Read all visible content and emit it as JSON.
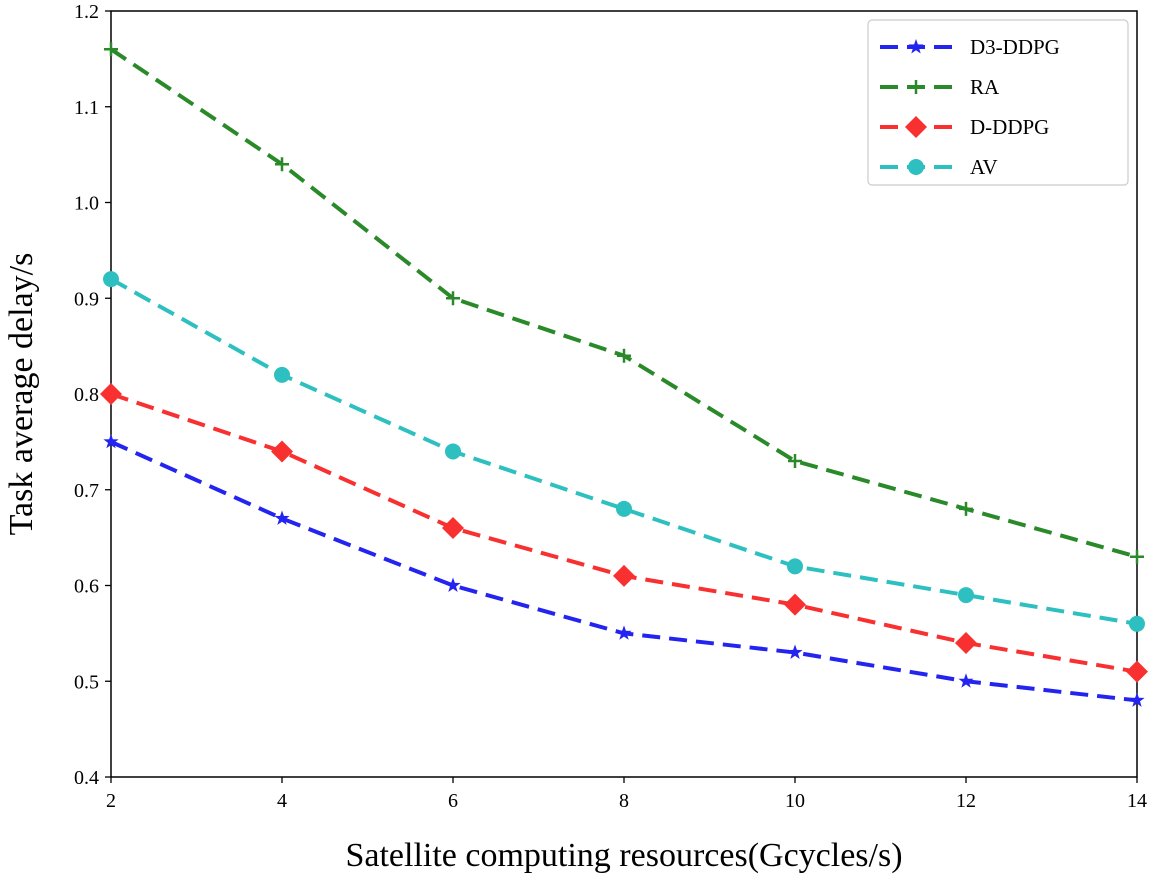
{
  "chart_data": {
    "type": "line",
    "title": "",
    "xlabel": "Satellite computing resources(Gcycles/s)",
    "ylabel": "Task average delay/s",
    "x": [
      2,
      4,
      6,
      8,
      10,
      12,
      14
    ],
    "xlim": [
      2,
      14
    ],
    "ylim": [
      0.4,
      1.2
    ],
    "xticks": [
      "2",
      "4",
      "6",
      "8",
      "10",
      "12",
      "14"
    ],
    "yticks": [
      "0.4",
      "0.5",
      "0.6",
      "0.7",
      "0.8",
      "0.9",
      "1.0",
      "1.1",
      "1.2"
    ],
    "grid": false,
    "legend_position": "top-right",
    "series": [
      {
        "name": "D3-DDPG",
        "color": "#2424f0",
        "marker": "star",
        "values": [
          0.75,
          0.67,
          0.6,
          0.55,
          0.53,
          0.5,
          0.48
        ]
      },
      {
        "name": "RA",
        "color": "#2a8a2a",
        "marker": "plus",
        "values": [
          1.16,
          1.04,
          0.9,
          0.84,
          0.73,
          0.68,
          0.63
        ]
      },
      {
        "name": "D-DDPG",
        "color": "#f83030",
        "marker": "diamond",
        "values": [
          0.8,
          0.74,
          0.66,
          0.61,
          0.58,
          0.54,
          0.51
        ]
      },
      {
        "name": "AV",
        "color": "#2ec0c0",
        "marker": "circle",
        "values": [
          0.92,
          0.82,
          0.74,
          0.68,
          0.62,
          0.59,
          0.56
        ]
      }
    ]
  }
}
